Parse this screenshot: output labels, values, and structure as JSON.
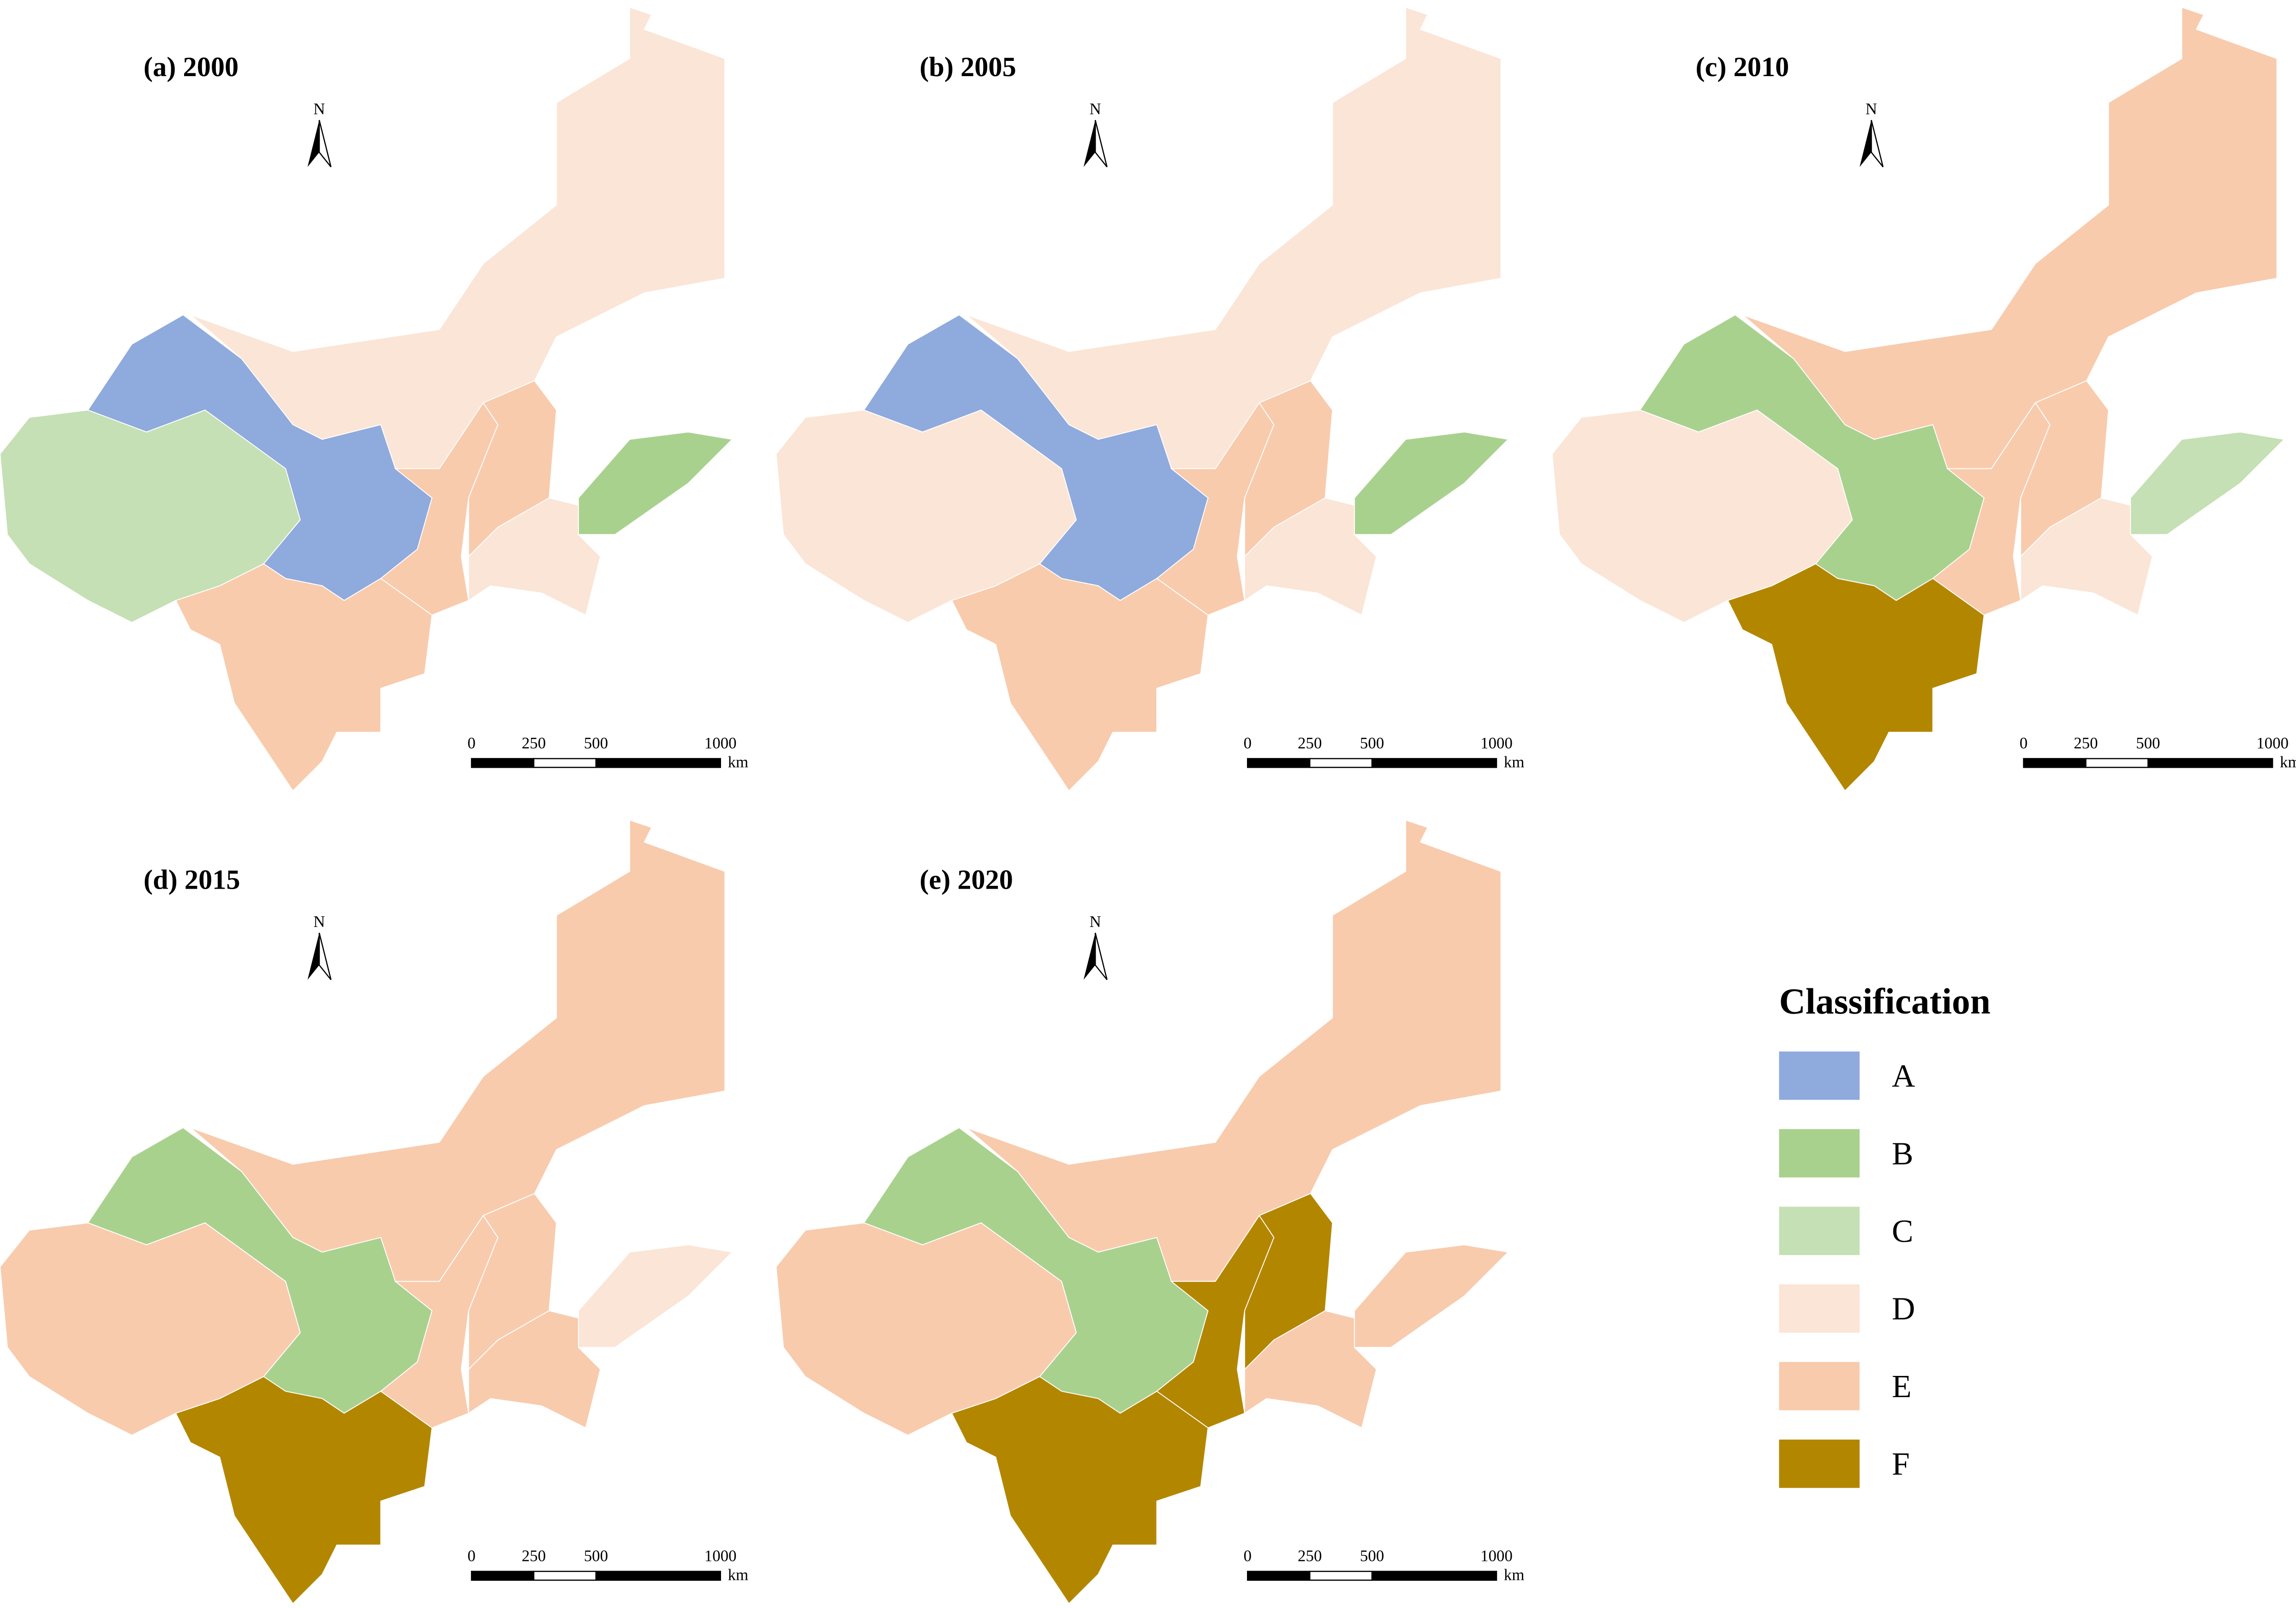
{
  "panels": [
    {
      "title": "(a) 2000",
      "regions": [
        "D",
        "A",
        "C",
        "E",
        "E",
        "B",
        "D",
        "E"
      ]
    },
    {
      "title": "(b) 2005",
      "regions": [
        "D",
        "A",
        "D",
        "E",
        "E",
        "B",
        "D",
        "E"
      ]
    },
    {
      "title": "(c) 2010",
      "regions": [
        "E",
        "B",
        "D",
        "E",
        "E",
        "C",
        "D",
        "F"
      ]
    },
    {
      "title": "(d) 2015",
      "regions": [
        "E",
        "B",
        "E",
        "E",
        "E",
        "D",
        "E",
        "F"
      ]
    },
    {
      "title": "(e) 2020",
      "regions": [
        "E",
        "B",
        "E",
        "F",
        "F",
        "E",
        "E",
        "F"
      ]
    }
  ],
  "north_label": "N",
  "scale_bar": {
    "ticks": [
      0,
      250,
      500,
      1000
    ],
    "unit": "km"
  },
  "legend": {
    "title": "Classification",
    "classes": [
      {
        "label": "A",
        "color": "#8faadc"
      },
      {
        "label": "B",
        "color": "#a9d18e"
      },
      {
        "label": "C",
        "color": "#c5e0b4"
      },
      {
        "label": "D",
        "color": "#fbe5d6"
      },
      {
        "label": "E",
        "color": "#f8cbad"
      },
      {
        "label": "F",
        "color": "#b38600"
      }
    ]
  }
}
